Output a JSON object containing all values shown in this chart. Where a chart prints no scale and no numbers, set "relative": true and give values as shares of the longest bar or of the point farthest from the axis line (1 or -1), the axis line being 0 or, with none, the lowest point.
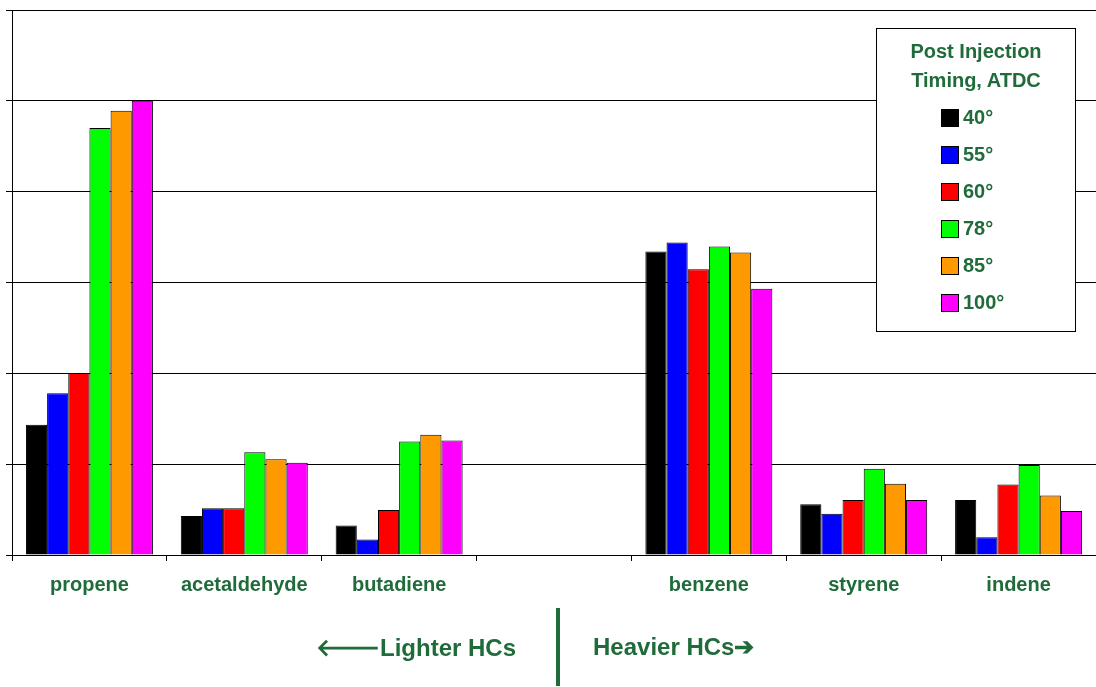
{
  "chart_data": {
    "type": "bar",
    "relative": true,
    "grid": "y",
    "legend": "top right",
    "legend_title": "Post Injection Timing, ATDC",
    "categories": [
      "propene",
      "acetaldehyde",
      "butadiene",
      null,
      "benzene",
      "styrene",
      "indene"
    ],
    "series": [
      {
        "name": "40°",
        "color": "#000000",
        "values": [
          0.287,
          0.086,
          0.065,
          null,
          0.668,
          0.112,
          0.121
        ]
      },
      {
        "name": "55°",
        "color": "#0000ff",
        "values": [
          0.356,
          0.103,
          0.034,
          null,
          0.688,
          0.091,
          0.039
        ]
      },
      {
        "name": "60°",
        "color": "#ff0000",
        "values": [
          0.401,
          0.103,
          0.099,
          null,
          0.629,
          0.121,
          0.155
        ]
      },
      {
        "name": "78°",
        "color": "#00ff00",
        "values": [
          0.94,
          0.226,
          0.25,
          null,
          0.679,
          0.19,
          0.198
        ]
      },
      {
        "name": "85°",
        "color": "#ff9900",
        "values": [
          0.978,
          0.211,
          0.265,
          null,
          0.666,
          0.157,
          0.131
        ]
      },
      {
        "name": "100°",
        "color": "#ff00ff",
        "values": [
          1,
          0.203,
          0.252,
          null,
          0.586,
          0.121,
          0.097
        ]
      }
    ],
    "annotations": [
      "🡐Lighter HCs",
      "Heavier HCs➔"
    ]
  }
}
